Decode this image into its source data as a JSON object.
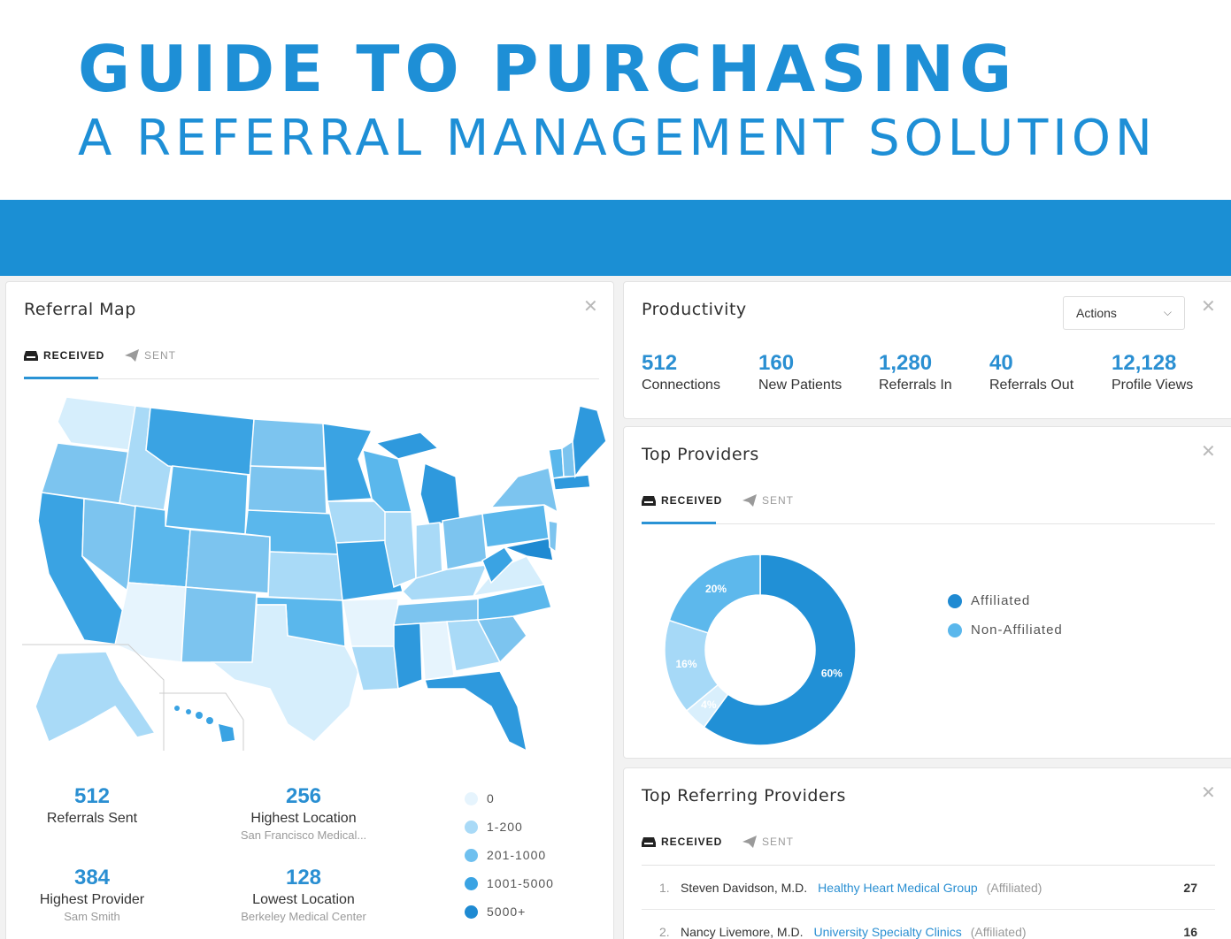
{
  "hero": {
    "title": "GUIDE TO PURCHASING",
    "subtitle": "A REFERRAL MANAGEMENT SOLUTION"
  },
  "tabs": {
    "received": "RECEIVED",
    "sent": "SENT"
  },
  "referral_map": {
    "title": "Referral Map",
    "stats": [
      {
        "value": "512",
        "label": "Referrals Sent",
        "sub": ""
      },
      {
        "value": "256",
        "label": "Highest Location",
        "sub": "San Francisco Medical..."
      },
      {
        "value": "384",
        "label": "Highest Provider",
        "sub": "Sam Smith"
      },
      {
        "value": "128",
        "label": "Lowest Location",
        "sub": "Berkeley Medical Center"
      }
    ],
    "legend": [
      {
        "label": "0",
        "color": "#e6f4fd"
      },
      {
        "label": "1-200",
        "color": "#a9daf7"
      },
      {
        "label": "201-1000",
        "color": "#6fc0ef"
      },
      {
        "label": "1001-5000",
        "color": "#3aa3e3"
      },
      {
        "label": "5000+",
        "color": "#1f8ad2"
      }
    ]
  },
  "productivity": {
    "title": "Productivity",
    "actions_label": "Actions",
    "stats": [
      {
        "value": "512",
        "label": "Connections"
      },
      {
        "value": "160",
        "label": "New Patients"
      },
      {
        "value": "1,280",
        "label": "Referrals In"
      },
      {
        "value": "40",
        "label": "Referrals Out"
      },
      {
        "value": "12,128",
        "label": "Profile Views"
      }
    ]
  },
  "top_providers": {
    "title": "Top Providers",
    "legend": [
      {
        "label": "Affiliated",
        "color": "#1f8ad2"
      },
      {
        "label": "Non-Affiliated",
        "color": "#5ab7ec"
      }
    ]
  },
  "chart_data": {
    "type": "pie",
    "categories": [
      "60%",
      "4%",
      "16%",
      "20%"
    ],
    "values": [
      60,
      4,
      16,
      20
    ],
    "colors": [
      "#2190d6",
      "#d9effc",
      "#a6d9f7",
      "#5db8ec"
    ],
    "title": ""
  },
  "top_referring": {
    "title": "Top Referring Providers",
    "rows": [
      {
        "idx": "1.",
        "name": "Steven Davidson, M.D.",
        "group": "Healthy Heart Medical Group",
        "aff": "(Affiliated)",
        "count": "27"
      },
      {
        "idx": "2.",
        "name": "Nancy Livemore, M.D.",
        "group": "University Specialty Clinics",
        "aff": "(Affiliated)",
        "count": "16"
      }
    ]
  }
}
